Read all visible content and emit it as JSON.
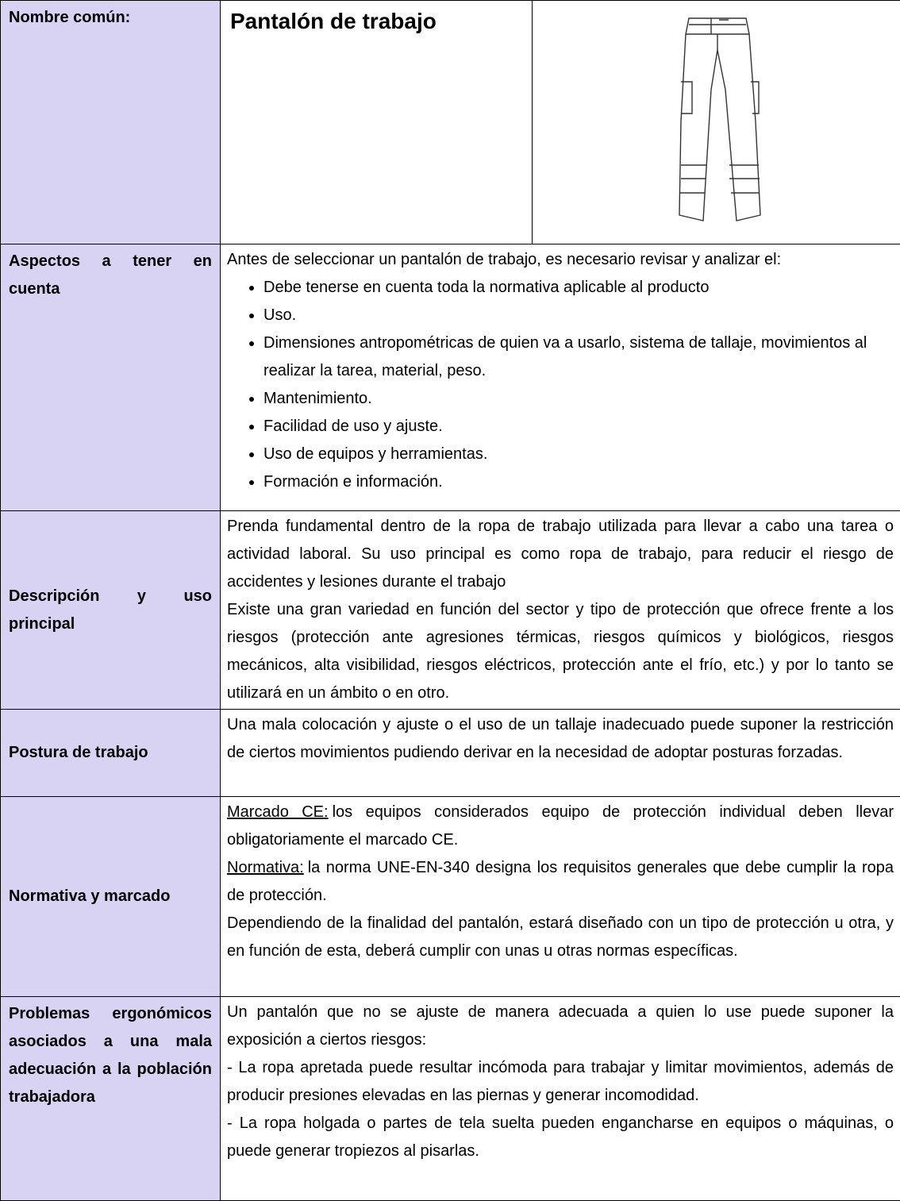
{
  "header": {
    "label": "Nombre común:",
    "title": "Pantalón de trabajo"
  },
  "rows": [
    {
      "label": "Aspectos a tener en cuenta",
      "intro": "Antes de seleccionar un pantalón de trabajo, es necesario revisar y analizar el:",
      "items": [
        "Debe tenerse en cuenta toda la normativa aplicable al producto",
        "Uso.",
        "Dimensiones antropométricas de quien va a usarlo, sistema de tallaje, movimientos al realizar la tarea, material, peso.",
        "Mantenimiento.",
        "Facilidad de uso y ajuste.",
        "Uso de equipos y herramientas.",
        "Formación e información."
      ]
    },
    {
      "label": "Descripción y uso principal",
      "paragraphs": [
        {
          "text": "Prenda fundamental dentro de la ropa de trabajo utilizada para llevar a cabo una tarea o actividad laboral. Su uso principal es como ropa de trabajo, para reducir el riesgo de accidentes y lesiones durante el trabajo"
        },
        {
          "text": "Existe una gran variedad en función del sector y tipo de protección que ofrece frente a los riesgos (protección ante agresiones térmicas, riesgos químicos y biológicos, riesgos mecánicos, alta visibilidad, riesgos eléctricos, protección ante el frío, etc.) y por lo tanto se utilizará en un ámbito o en otro."
        }
      ]
    },
    {
      "label": "Postura de trabajo",
      "paragraphs": [
        {
          "text": "Una mala colocación y ajuste o el uso de un tallaje inadecuado puede suponer la restricción de ciertos movimientos pudiendo derivar en la necesidad de adoptar posturas forzadas."
        }
      ]
    },
    {
      "label": "Normativa y marcado",
      "paragraphs": [
        {
          "lead": "Marcado CE:",
          "text": "los equipos considerados equipo de protección individual deben llevar obligatoriamente el marcado CE."
        },
        {
          "lead": "Normativa:",
          "text": "la norma UNE-EN-340 designa los requisitos generales que debe cumplir la ropa de protección."
        },
        {
          "text": "Dependiendo de la finalidad del pantalón, estará diseñado con un tipo de protección u otra, y en función de esta, deberá cumplir con unas u otras normas específicas."
        }
      ]
    },
    {
      "label": "Problemas ergonómicos asociados a una mala adecuación a la población trabajadora",
      "paragraphs": [
        {
          "text": "Un pantalón que no se ajuste de manera adecuada a quien lo use puede suponer la exposición a ciertos riesgos:"
        },
        {
          "text": "- La ropa apretada puede resultar incómoda para trabajar y limitar movimientos, además de producir presiones elevadas en las piernas y generar incomodidad."
        },
        {
          "text": "- La ropa holgada o partes de tela suelta pueden engancharse en equipos o máquinas, o puede generar tropiezos al pisarlas."
        }
      ]
    }
  ]
}
